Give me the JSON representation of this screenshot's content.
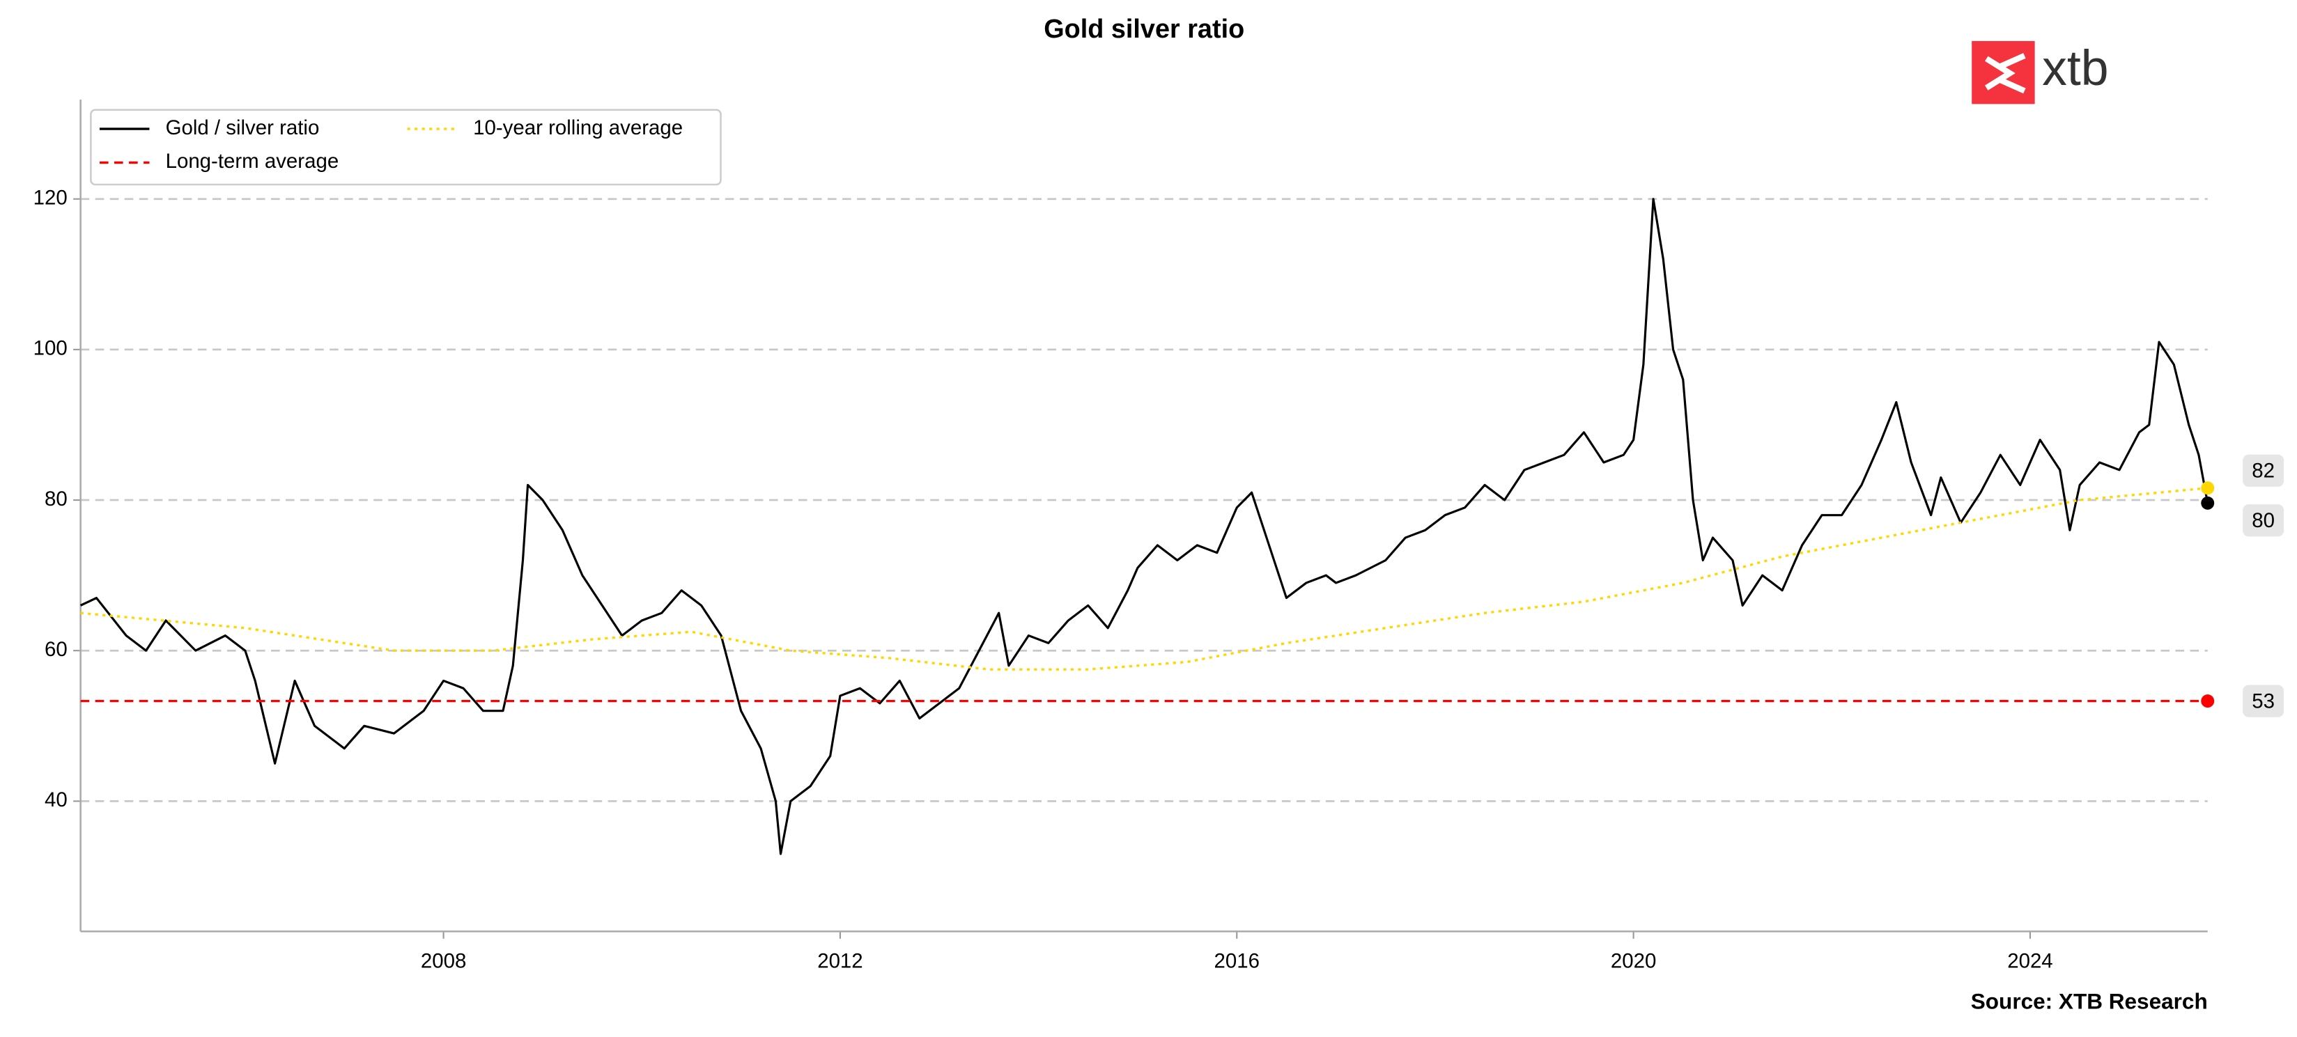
{
  "chart_data": {
    "type": "line",
    "title": "Gold silver ratio",
    "source": "Source: XTB Research",
    "logo": "xtb",
    "xlim": [
      2004.34,
      2025.79
    ],
    "xticks": [
      2008,
      2012,
      2016,
      2020,
      2024
    ],
    "ylim": [
      22.7,
      133.2
    ],
    "yticks": [
      40,
      60,
      80,
      100,
      120
    ],
    "grid": true,
    "legend": "upper left",
    "series": [
      {
        "name": "Gold / silver ratio",
        "color": "#000000",
        "style": "solid",
        "x": [
          2004.34,
          2004.5,
          2004.8,
          2005.0,
          2005.2,
          2005.5,
          2005.8,
          2006.0,
          2006.1,
          2006.3,
          2006.5,
          2006.7,
          2006.9,
          2007.0,
          2007.2,
          2007.5,
          2007.8,
          2008.0,
          2008.2,
          2008.4,
          2008.6,
          2008.7,
          2008.8,
          2008.85,
          2009.0,
          2009.2,
          2009.4,
          2009.6,
          2009.8,
          2010.0,
          2010.2,
          2010.4,
          2010.6,
          2010.8,
          2011.0,
          2011.2,
          2011.35,
          2011.4,
          2011.5,
          2011.7,
          2011.9,
          2012.0,
          2012.2,
          2012.4,
          2012.6,
          2012.8,
          2013.0,
          2013.2,
          2013.4,
          2013.6,
          2013.7,
          2013.9,
          2014.1,
          2014.3,
          2014.5,
          2014.7,
          2014.9,
          2015.0,
          2015.2,
          2015.4,
          2015.6,
          2015.8,
          2016.0,
          2016.15,
          2016.3,
          2016.5,
          2016.7,
          2016.9,
          2017.0,
          2017.2,
          2017.5,
          2017.7,
          2017.9,
          2018.1,
          2018.3,
          2018.5,
          2018.7,
          2018.9,
          2019.1,
          2019.3,
          2019.5,
          2019.7,
          2019.9,
          2020.0,
          2020.1,
          2020.2,
          2020.3,
          2020.4,
          2020.5,
          2020.6,
          2020.7,
          2020.8,
          2021.0,
          2021.1,
          2021.3,
          2021.5,
          2021.7,
          2021.9,
          2022.1,
          2022.3,
          2022.5,
          2022.65,
          2022.8,
          2023.0,
          2023.1,
          2023.3,
          2023.5,
          2023.7,
          2023.9,
          2024.1,
          2024.3,
          2024.4,
          2024.5,
          2024.7,
          2024.9,
          2025.1,
          2025.2,
          2025.3,
          2025.45,
          2025.6,
          2025.7,
          2025.79
        ],
        "values": [
          66,
          67,
          62,
          60,
          64,
          60,
          62,
          60,
          56,
          45,
          56,
          50,
          48,
          47,
          50,
          49,
          52,
          56,
          55,
          52,
          52,
          58,
          72,
          82,
          80,
          76,
          70,
          66,
          62,
          64,
          65,
          68,
          66,
          62,
          52,
          47,
          40,
          33,
          40,
          42,
          46,
          54,
          55,
          53,
          56,
          51,
          53,
          55,
          60,
          65,
          58,
          62,
          61,
          64,
          66,
          63,
          68,
          71,
          74,
          72,
          74,
          73,
          79,
          81,
          75,
          67,
          69,
          70,
          69,
          70,
          72,
          75,
          76,
          78,
          79,
          82,
          80,
          84,
          85,
          86,
          89,
          85,
          86,
          88,
          98,
          120,
          112,
          100,
          96,
          80,
          72,
          75,
          72,
          66,
          70,
          68,
          74,
          78,
          78,
          82,
          88,
          93,
          85,
          78,
          83,
          77,
          81,
          86,
          82,
          88,
          84,
          76,
          82,
          85,
          84,
          89,
          90,
          101,
          98,
          90,
          86,
          79.6
        ],
        "end_label": "80"
      },
      {
        "name": "Long-term average",
        "color": "#ff0000",
        "style": "dashed",
        "x": [
          2004.34,
          2025.79
        ],
        "values": [
          53.3,
          53.3
        ],
        "end_label": "53"
      },
      {
        "name": "10-year rolling average",
        "color": "#ffd700",
        "style": "dotted",
        "x": [
          2004.34,
          2006.0,
          2007.5,
          2008.5,
          2009.5,
          2010.5,
          2011.5,
          2012.5,
          2013.5,
          2014.5,
          2015.5,
          2016.5,
          2017.5,
          2018.5,
          2019.5,
          2020.5,
          2021.5,
          2022.5,
          2023.5,
          2024.5,
          2025.79
        ],
        "values": [
          65,
          63,
          60,
          60,
          61.5,
          62.5,
          60,
          59,
          57.5,
          57.5,
          58.5,
          61,
          63,
          65,
          66.5,
          69,
          72.5,
          75,
          77.5,
          80,
          81.6
        ],
        "end_label": "82"
      }
    ]
  }
}
